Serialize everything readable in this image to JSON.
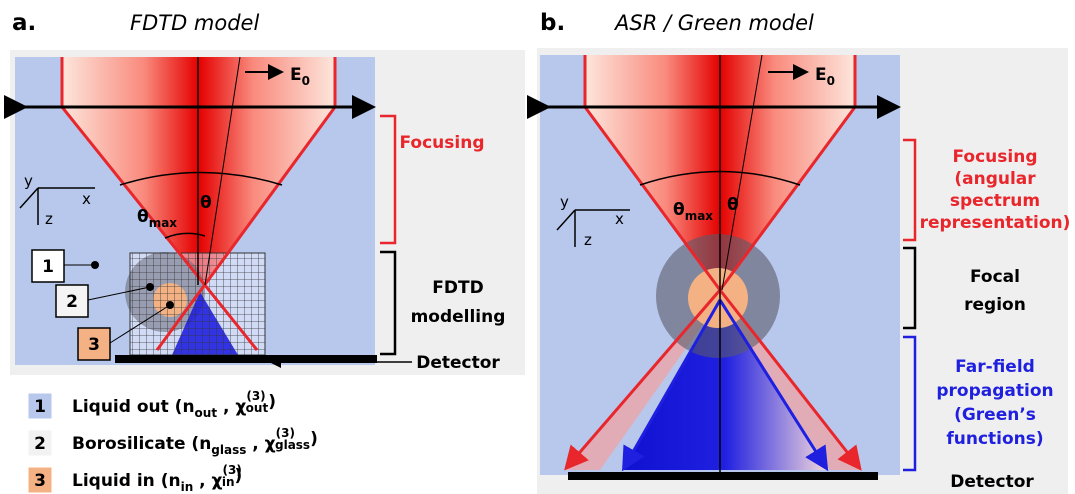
{
  "panel_a": {
    "label": "a.",
    "title": "FDTD model",
    "field": [
      "E",
      "0"
    ],
    "theta_max": [
      "θ",
      "max"
    ],
    "theta": "θ",
    "axes": {
      "x": "x",
      "y": "y",
      "z": "z"
    },
    "focusing": "Focusing",
    "modelling": [
      "FDTD",
      "modelling"
    ],
    "detector": "Detector",
    "markers": [
      "1",
      "2",
      "3"
    ]
  },
  "legend": [
    {
      "number": "1",
      "parts": [
        "Liquid out (n",
        "out",
        " , χ",
        "(3)",
        "out",
        ")"
      ]
    },
    {
      "number": "2",
      "parts": [
        "Borosilicate (n",
        "glass",
        " , χ",
        "(3)",
        "glass",
        ")"
      ]
    },
    {
      "number": "3",
      "parts": [
        "Liquid in (n",
        "in",
        " , χ",
        "(3)",
        "in",
        ")"
      ]
    }
  ],
  "panel_b": {
    "label": "b.",
    "title": "ASR / Green model",
    "field": [
      "E",
      "0"
    ],
    "theta_max": [
      "θ",
      "max"
    ],
    "theta": "θ",
    "axes": {
      "x": "x",
      "y": "y",
      "z": "z"
    },
    "focusing": [
      "Focusing",
      "(angular",
      "spectrum",
      "representation)"
    ],
    "focal": [
      "Focal",
      "region"
    ],
    "farfield": [
      "Far-field",
      "propagation",
      "(Green’s",
      "functions)"
    ],
    "detector": "Detector"
  }
}
